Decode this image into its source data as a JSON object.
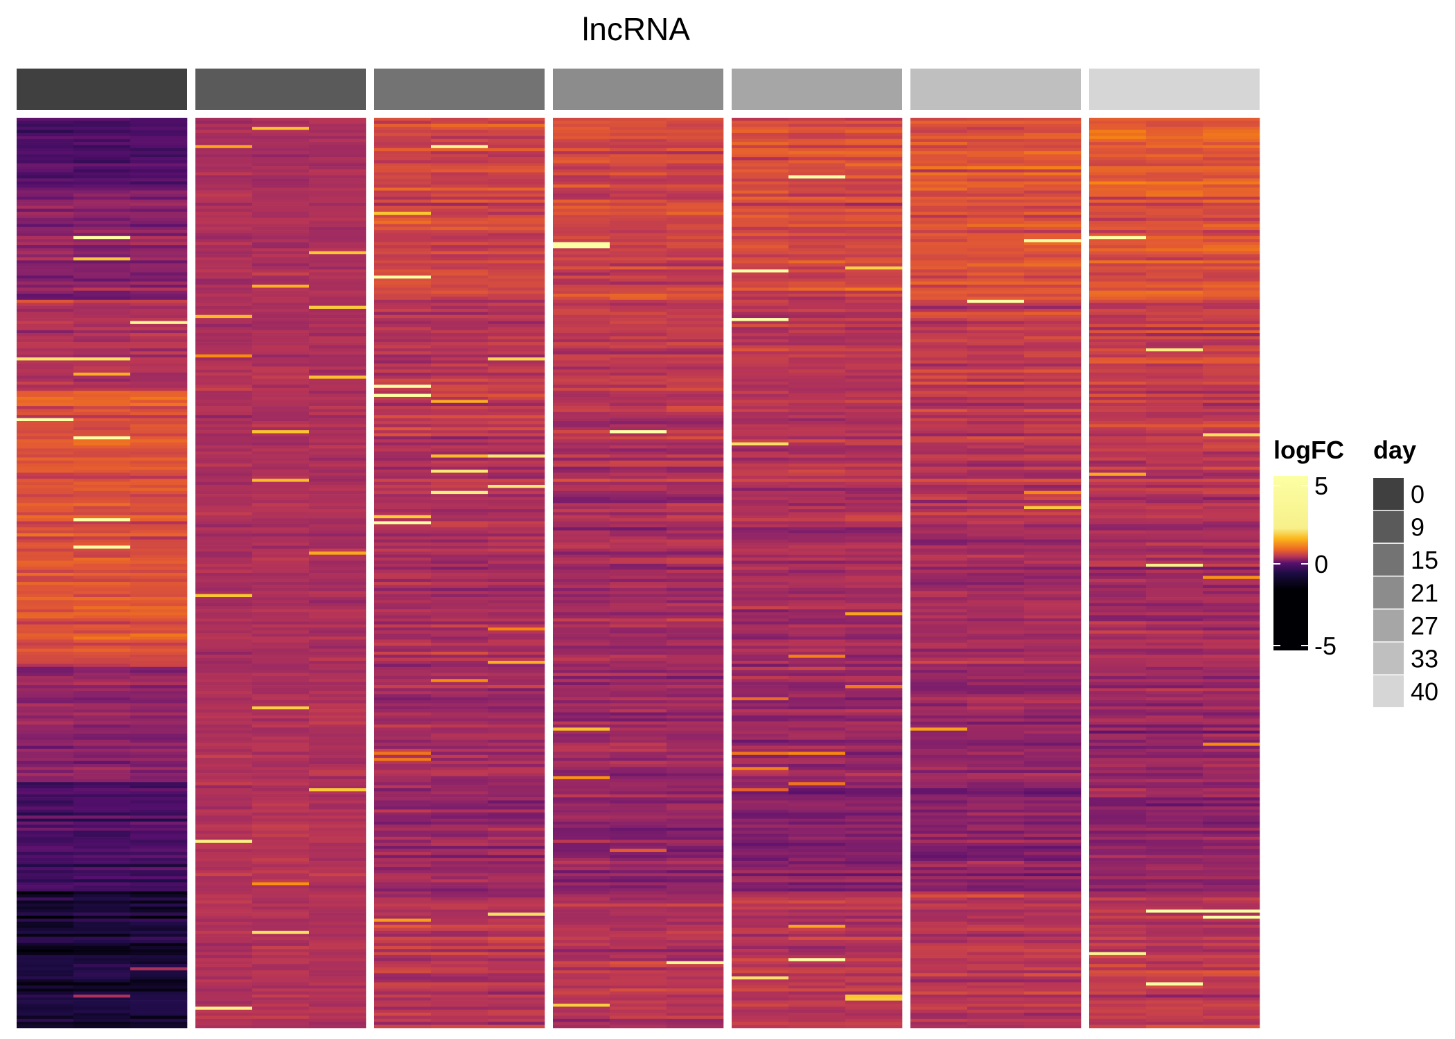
{
  "chart_data": {
    "type": "heatmap",
    "title": "lncRNA",
    "replicates_per_day": 3,
    "row_count": 300,
    "days": [
      "0",
      "9",
      "15",
      "21",
      "27",
      "33",
      "40"
    ],
    "day_colors": [
      "#404040",
      "#5a5a5a",
      "#737373",
      "#8c8c8c",
      "#a6a6a6",
      "#bfbfbf",
      "#d6d6d6"
    ],
    "row_profile_note": "approximate logFC per row band (rows sorted top to bottom), read visually",
    "band_profile": [
      {
        "from": 0.0,
        "to": 0.08,
        "values": [
          -1.5,
          0.1,
          0.9,
          0.9,
          1.0,
          1.3,
          1.4
        ]
      },
      {
        "from": 0.08,
        "to": 0.2,
        "values": [
          -0.5,
          0.2,
          0.8,
          0.8,
          0.9,
          1.1,
          1.2
        ]
      },
      {
        "from": 0.2,
        "to": 0.3,
        "values": [
          0.3,
          0.2,
          0.5,
          0.5,
          0.5,
          0.6,
          0.7
        ]
      },
      {
        "from": 0.3,
        "to": 0.4,
        "values": [
          1.2,
          0.2,
          0.4,
          0.3,
          0.3,
          0.4,
          0.4
        ]
      },
      {
        "from": 0.4,
        "to": 0.6,
        "values": [
          1.1,
          0.2,
          0.2,
          0.1,
          0.1,
          0.1,
          0.1
        ]
      },
      {
        "from": 0.6,
        "to": 0.73,
        "values": [
          -0.3,
          0.2,
          0.0,
          -0.1,
          -0.2,
          -0.2,
          -0.2
        ]
      },
      {
        "from": 0.73,
        "to": 0.85,
        "values": [
          -1.6,
          0.3,
          -0.2,
          -0.3,
          -0.5,
          -0.4,
          -0.3
        ]
      },
      {
        "from": 0.85,
        "to": 1.0,
        "values": [
          -2.4,
          0.3,
          0.3,
          0.3,
          0.3,
          0.4,
          0.5
        ]
      }
    ],
    "legend_logfc": {
      "title": "logFC",
      "ticks": [
        "5",
        "0",
        "-5"
      ],
      "range": [
        -5,
        5
      ]
    },
    "legend_day": {
      "title": "day",
      "labels": [
        "0",
        "9",
        "15",
        "21",
        "27",
        "33",
        "40"
      ]
    }
  }
}
